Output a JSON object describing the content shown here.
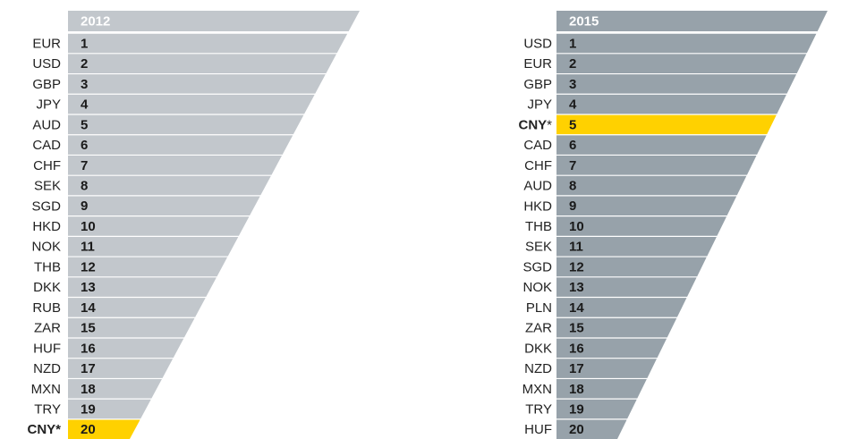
{
  "panels": [
    {
      "year": "2012",
      "rows": [
        {
          "code": "EUR",
          "rank": "1"
        },
        {
          "code": "USD",
          "rank": "2"
        },
        {
          "code": "GBP",
          "rank": "3"
        },
        {
          "code": "JPY",
          "rank": "4"
        },
        {
          "code": "AUD",
          "rank": "5"
        },
        {
          "code": "CAD",
          "rank": "6"
        },
        {
          "code": "CHF",
          "rank": "7"
        },
        {
          "code": "SEK",
          "rank": "8"
        },
        {
          "code": "SGD",
          "rank": "9"
        },
        {
          "code": "HKD",
          "rank": "10"
        },
        {
          "code": "NOK",
          "rank": "11"
        },
        {
          "code": "THB",
          "rank": "12"
        },
        {
          "code": "DKK",
          "rank": "13"
        },
        {
          "code": "RUB",
          "rank": "14"
        },
        {
          "code": "ZAR",
          "rank": "15"
        },
        {
          "code": "HUF",
          "rank": "16"
        },
        {
          "code": "NZD",
          "rank": "17"
        },
        {
          "code": "MXN",
          "rank": "18"
        },
        {
          "code": "TRY",
          "rank": "19"
        },
        {
          "code": "CNY*",
          "rank": "20",
          "highlight": true
        }
      ]
    },
    {
      "year": "2015",
      "rows": [
        {
          "code": "USD",
          "rank": "1"
        },
        {
          "code": "EUR",
          "rank": "2"
        },
        {
          "code": "GBP",
          "rank": "3"
        },
        {
          "code": "JPY",
          "rank": "4"
        },
        {
          "code": "CNY",
          "note": "*",
          "rank": "5",
          "highlight": true
        },
        {
          "code": "CAD",
          "rank": "6"
        },
        {
          "code": "CHF",
          "rank": "7"
        },
        {
          "code": "AUD",
          "rank": "8"
        },
        {
          "code": "HKD",
          "rank": "9"
        },
        {
          "code": "THB",
          "rank": "10"
        },
        {
          "code": "SEK",
          "rank": "11"
        },
        {
          "code": "SGD",
          "rank": "12"
        },
        {
          "code": "NOK",
          "rank": "13"
        },
        {
          "code": "PLN",
          "rank": "14"
        },
        {
          "code": "ZAR",
          "rank": "15"
        },
        {
          "code": "DKK",
          "rank": "16"
        },
        {
          "code": "NZD",
          "rank": "17"
        },
        {
          "code": "MXN",
          "rank": "18"
        },
        {
          "code": "TRY",
          "rank": "19"
        },
        {
          "code": "HUF",
          "rank": "20"
        }
      ]
    }
  ]
}
